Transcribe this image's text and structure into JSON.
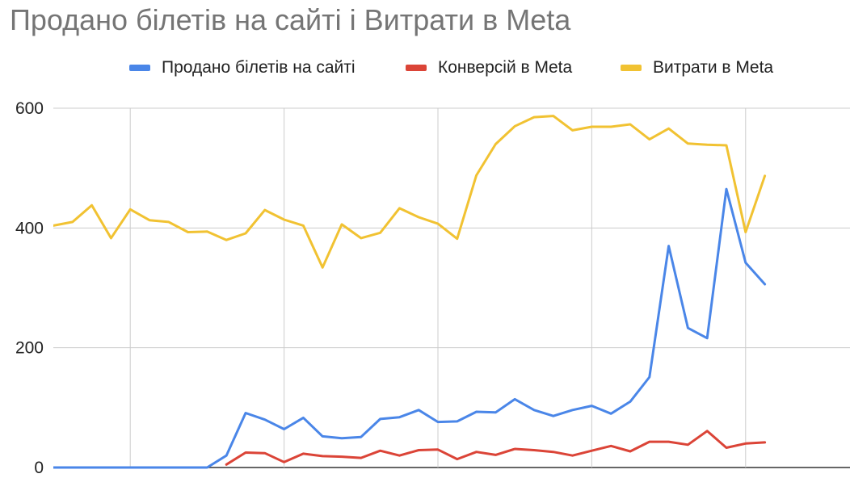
{
  "chart_data": {
    "type": "line",
    "title": "Продано білетів на сайті і Витрати в Meta",
    "xlabel": "",
    "ylabel": "",
    "ylim": [
      0,
      600
    ],
    "yticks": [
      "0",
      "200",
      "400",
      "600"
    ],
    "grid": true,
    "legend_position": "top",
    "x": [
      1,
      2,
      3,
      4,
      5,
      6,
      7,
      8,
      9,
      10,
      11,
      12,
      13,
      14,
      15,
      16,
      17,
      18,
      19,
      20,
      21,
      22,
      23,
      24,
      25,
      26,
      27,
      28,
      29,
      30,
      31,
      32,
      33,
      34,
      35,
      36,
      37,
      38,
      39
    ],
    "series": [
      {
        "name": "Продано білетів на сайті",
        "color": "#4a86e8",
        "values": [
          0,
          0,
          0,
          0,
          0,
          0,
          0,
          0,
          0,
          20,
          91,
          80,
          64,
          83,
          52,
          49,
          51,
          81,
          84,
          96,
          76,
          77,
          93,
          92,
          114,
          96,
          86,
          96,
          103,
          90,
          110,
          151,
          370,
          233,
          216,
          465,
          342,
          306,
          null
        ]
      },
      {
        "name": "Конверсій в Meta",
        "color": "#db4437",
        "values": [
          null,
          null,
          null,
          null,
          null,
          null,
          null,
          null,
          null,
          5,
          25,
          24,
          9,
          23,
          19,
          18,
          16,
          28,
          20,
          29,
          30,
          14,
          26,
          21,
          31,
          29,
          26,
          20,
          28,
          36,
          27,
          43,
          43,
          38,
          61,
          33,
          40,
          42,
          null
        ]
      },
      {
        "name": "Витрати в Meta",
        "color": "#f1c232",
        "values": [
          404,
          410,
          438,
          383,
          431,
          413,
          410,
          393,
          394,
          380,
          391,
          430,
          414,
          404,
          334,
          406,
          383,
          392,
          433,
          418,
          407,
          382,
          488,
          540,
          570,
          585,
          587,
          563,
          569,
          569,
          573,
          548,
          566,
          541,
          539,
          538,
          393,
          487,
          null
        ]
      }
    ]
  }
}
